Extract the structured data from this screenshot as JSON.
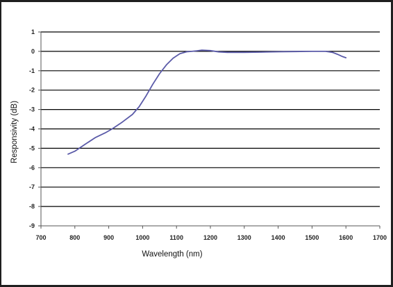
{
  "chart_data": {
    "type": "line",
    "title": "",
    "xlabel": "Wavelength (nm)",
    "ylabel": "Responsivity (dB)",
    "xlim": [
      700,
      1700
    ],
    "ylim": [
      -9,
      1
    ],
    "xticks": [
      700,
      800,
      900,
      1000,
      1100,
      1200,
      1300,
      1400,
      1500,
      1600,
      1700
    ],
    "yticks": [
      1,
      0,
      -1,
      -2,
      -3,
      -4,
      -5,
      -6,
      -7,
      -8,
      -9
    ],
    "xtick_labels": [
      "700",
      "800",
      "900",
      "1000",
      "1100",
      "1200",
      "1300",
      "1400",
      "1500",
      "1600",
      "1700"
    ],
    "ytick_labels": [
      "1",
      "0",
      "-1",
      "-2",
      "-3",
      "-4",
      "-5",
      "-6",
      "-7",
      "-8",
      "-9"
    ],
    "grid": "horizontal",
    "legend": "none",
    "line_color": "#5a5aa8",
    "series": [
      {
        "x": [
          780,
          800,
          830,
          860,
          890,
          910,
          940,
          970,
          990,
          1010,
          1030,
          1050,
          1070,
          1090,
          1110,
          1130,
          1145,
          1160,
          1175,
          1200,
          1225,
          1250,
          1300,
          1350,
          1400,
          1450,
          1500,
          1540,
          1560,
          1575,
          1590,
          1600
        ],
        "y": [
          -5.3,
          -5.15,
          -4.8,
          -4.45,
          -4.2,
          -4.0,
          -3.65,
          -3.25,
          -2.85,
          -2.3,
          -1.7,
          -1.15,
          -0.7,
          -0.35,
          -0.12,
          -0.02,
          0.0,
          0.03,
          0.06,
          0.04,
          -0.03,
          -0.05,
          -0.05,
          -0.04,
          -0.02,
          -0.01,
          0.0,
          0.0,
          -0.05,
          -0.15,
          -0.27,
          -0.33
        ]
      }
    ]
  }
}
